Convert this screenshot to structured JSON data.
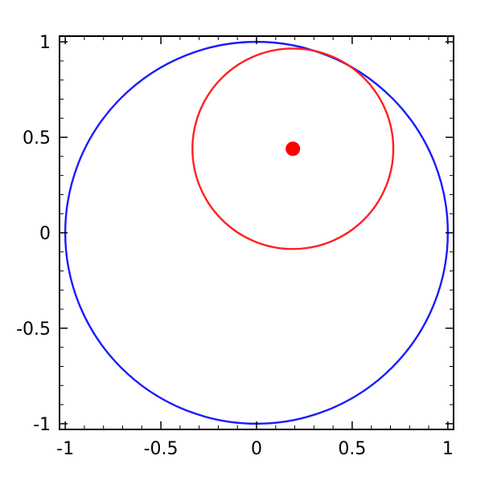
{
  "chart_data": {
    "type": "scatter",
    "title": "",
    "xlabel": "",
    "ylabel": "",
    "xlim": [
      -1.03,
      1.03
    ],
    "ylim": [
      -1.03,
      1.03
    ],
    "grid": false,
    "legend": "none",
    "x_ticks": [
      {
        "value": -1,
        "label": "-1"
      },
      {
        "value": -0.5,
        "label": "-0.5"
      },
      {
        "value": 0,
        "label": "0"
      },
      {
        "value": 0.5,
        "label": "0.5"
      },
      {
        "value": 1,
        "label": "1"
      }
    ],
    "y_ticks": [
      {
        "value": 1,
        "label": "1"
      },
      {
        "value": 0.5,
        "label": "0.5"
      },
      {
        "value": 0,
        "label": "0"
      },
      {
        "value": -0.5,
        "label": "-0.5"
      },
      {
        "value": -1,
        "label": "-1"
      }
    ],
    "minor_tick_step": 0.1,
    "circles": [
      {
        "center_x": 0,
        "center_y": 0,
        "radius": 1,
        "color": "#1a1aff"
      },
      {
        "center_x": 0.19,
        "center_y": 0.44,
        "radius": 0.525,
        "color": "#ff2020"
      }
    ],
    "points": [
      {
        "x": 0.19,
        "y": 0.44,
        "color": "#ff0000"
      }
    ]
  }
}
